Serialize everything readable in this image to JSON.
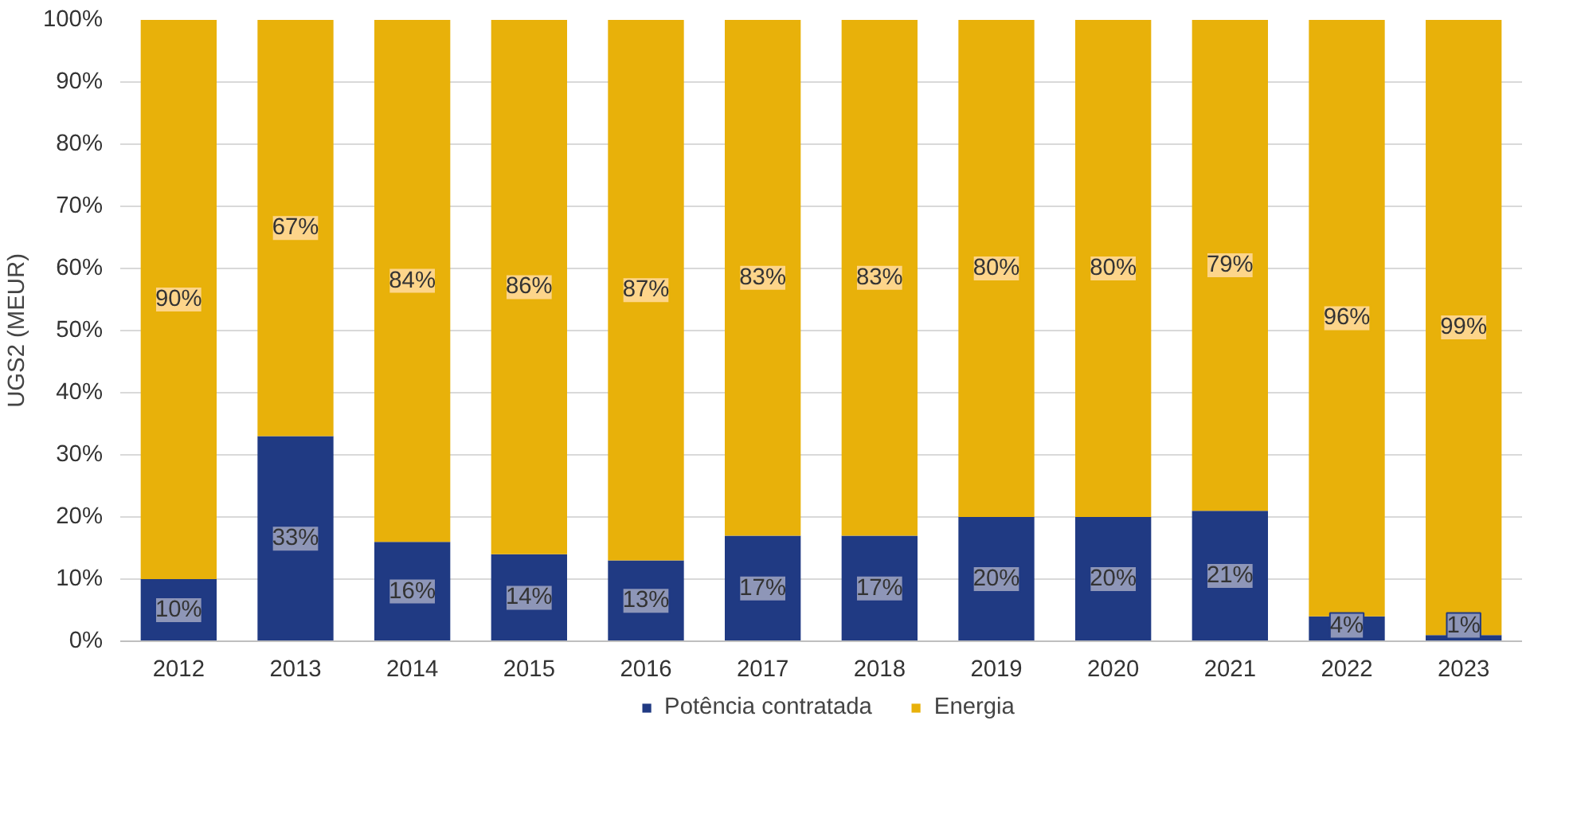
{
  "chart_data": {
    "type": "bar",
    "stacked": true,
    "ylabel": "UGS2 (MEUR)",
    "categories": [
      "2012",
      "2013",
      "2014",
      "2015",
      "2016",
      "2017",
      "2018",
      "2019",
      "2020",
      "2021",
      "2022",
      "2023"
    ],
    "series": [
      {
        "name": "Potência contratada",
        "color": "#203a83",
        "values": [
          10,
          33,
          16,
          14,
          13,
          17,
          17,
          20,
          20,
          21,
          4,
          1
        ],
        "value_labels": [
          "10%",
          "33%",
          "16%",
          "14%",
          "13%",
          "17%",
          "17%",
          "20%",
          "20%",
          "21%",
          "4%",
          "1%"
        ]
      },
      {
        "name": "Energia",
        "color": "#e8b10a",
        "values": [
          90,
          67,
          84,
          86,
          87,
          83,
          83,
          80,
          80,
          79,
          96,
          99
        ],
        "value_labels": [
          "90%",
          "67%",
          "84%",
          "86%",
          "87%",
          "83%",
          "83%",
          "80%",
          "80%",
          "79%",
          "96%",
          "99%"
        ]
      }
    ],
    "ylim": [
      0,
      100
    ],
    "yticks": [
      {
        "value": 0,
        "label": "0%"
      },
      {
        "value": 10,
        "label": "10%"
      },
      {
        "value": 20,
        "label": "20%"
      },
      {
        "value": 30,
        "label": "30%"
      },
      {
        "value": 40,
        "label": "40%"
      },
      {
        "value": 50,
        "label": "50%"
      },
      {
        "value": 60,
        "label": "60%"
      },
      {
        "value": 70,
        "label": "70%"
      },
      {
        "value": 80,
        "label": "80%"
      },
      {
        "value": 90,
        "label": "90%"
      },
      {
        "value": 100,
        "label": "100%"
      }
    ],
    "grid": "y",
    "legend": "bottom"
  }
}
